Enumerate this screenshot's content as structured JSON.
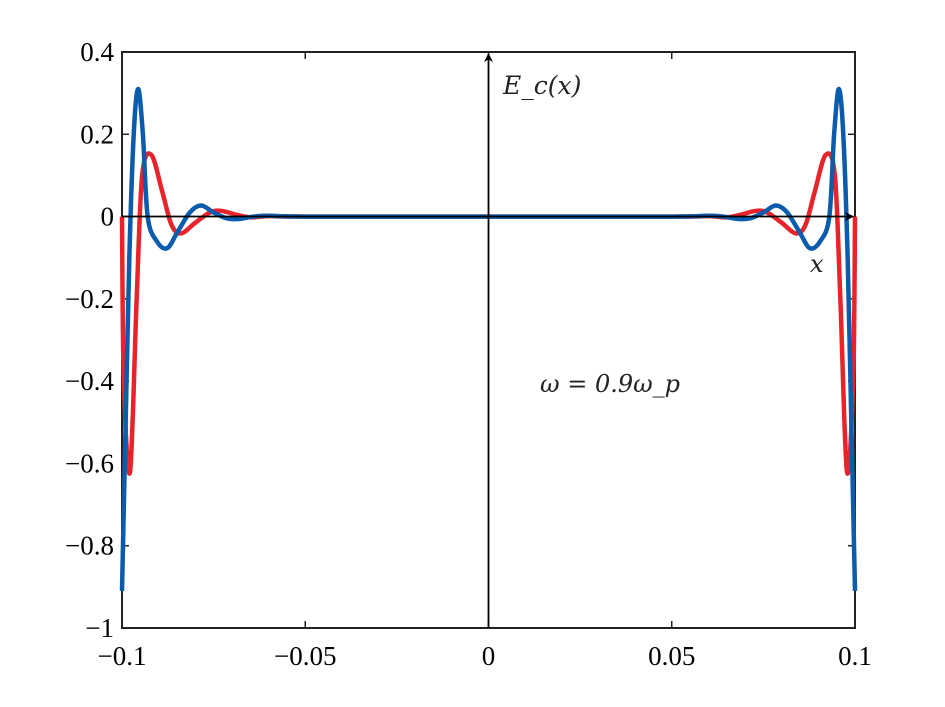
{
  "chart_data": {
    "type": "line",
    "title": "",
    "xlabel": "x",
    "ylabel": "E_c(x)",
    "annotation": "ω = 0.9ω_p",
    "xlim": [
      -0.1,
      0.1
    ],
    "ylim": [
      -1,
      0.4
    ],
    "grid": false,
    "xticks": [
      -0.1,
      -0.05,
      0,
      0.05,
      0.1
    ],
    "xtick_labels": [
      "−0.1",
      "−0.05",
      "0",
      "0.05",
      "0.1"
    ],
    "yticks": [
      0.4,
      0.2,
      0,
      -0.2,
      -0.4,
      -0.6,
      -0.8,
      -1
    ],
    "ytick_labels": [
      "0.4",
      "0.2",
      "0",
      "−0.2",
      "−0.4",
      "−0.6",
      "−0.8",
      "−1"
    ],
    "symmetry": "even about x = 0",
    "series": [
      {
        "name": "red",
        "color": "#e8242a",
        "x": [
          -0.1,
          -0.0995,
          -0.0978,
          -0.096,
          -0.0945,
          -0.092,
          -0.089,
          -0.0865,
          -0.0839,
          -0.08,
          -0.076,
          -0.073,
          -0.069,
          -0.065,
          -0.06,
          -0.05,
          0
        ],
        "y": [
          0,
          -0.4,
          -0.62,
          -0.2,
          0.1,
          0.15,
          0.06,
          -0.02,
          -0.041,
          -0.015,
          0.01,
          0.014,
          0.005,
          -0.002,
          0.001,
          0,
          0
        ]
      },
      {
        "name": "blue",
        "color": "#0b5cad",
        "x": [
          -0.1,
          -0.099,
          -0.098,
          -0.0968,
          -0.0956,
          -0.0943,
          -0.093,
          -0.0905,
          -0.0877,
          -0.085,
          -0.0815,
          -0.0784,
          -0.075,
          -0.0715,
          -0.0683,
          -0.064,
          -0.06,
          -0.05,
          0
        ],
        "y": [
          -0.91,
          -0.5,
          -0.1,
          0.2,
          0.31,
          0.2,
          0,
          -0.06,
          -0.077,
          -0.04,
          0.01,
          0.027,
          0.01,
          -0.004,
          -0.006,
          0,
          0.002,
          0,
          0
        ]
      }
    ]
  }
}
